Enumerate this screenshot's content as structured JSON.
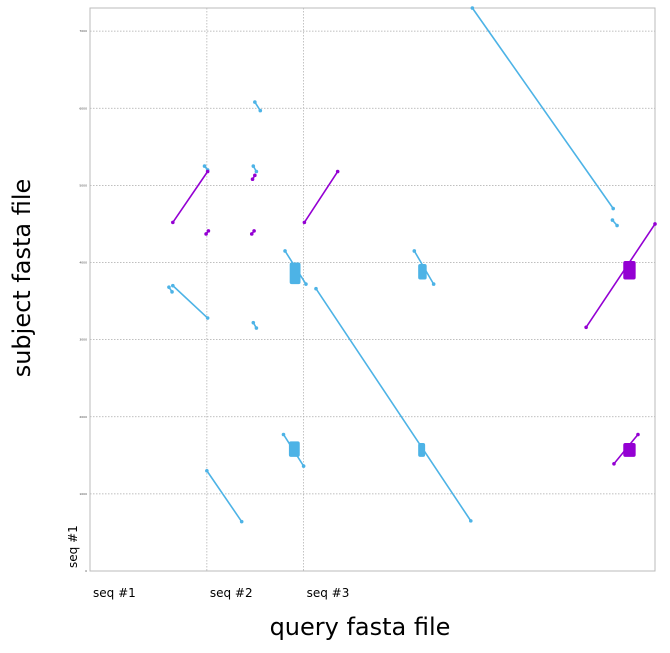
{
  "chart_data": {
    "type": "scatter",
    "subtype": "dotplot",
    "xlabel": "query fasta file",
    "ylabel": "subject fasta file",
    "query_sequences": [
      "seq #1",
      "seq #2",
      "seq #3"
    ],
    "subject_sequences": [
      "seq #1"
    ],
    "ytick_labels": [
      "0",
      "1000",
      "2000",
      "3000",
      "4000",
      "5000",
      "6000",
      "7000"
    ],
    "colors": {
      "forward": "#4db3e6",
      "reverse": "#9400d3",
      "gridline": "#aaaaaa",
      "frame": "#bbbbbb"
    },
    "xlim": [
      0,
      7300
    ],
    "ylim": [
      0,
      7300
    ],
    "grid": true,
    "alignments": [
      {
        "strand": "forward",
        "x": [
          1070,
          1520
        ],
        "y": [
          3700,
          3280
        ]
      },
      {
        "strand": "forward",
        "x": [
          1020,
          1060
        ],
        "y": [
          3680,
          3620
        ]
      },
      {
        "strand": "forward",
        "x": [
          1510,
          1960
        ],
        "y": [
          1300,
          640
        ]
      },
      {
        "strand": "forward",
        "x": [
          1480,
          1520
        ],
        "y": [
          5250,
          5200
        ]
      },
      {
        "strand": "forward",
        "x": [
          2130,
          2200
        ],
        "y": [
          6080,
          5970
        ]
      },
      {
        "strand": "forward",
        "x": [
          2110,
          2150
        ],
        "y": [
          5250,
          5180
        ]
      },
      {
        "strand": "forward",
        "x": [
          2110,
          2150
        ],
        "y": [
          3220,
          3150
        ]
      },
      {
        "strand": "forward",
        "x": [
          2520,
          2790
        ],
        "y": [
          4150,
          3720
        ]
      },
      {
        "strand": "forward",
        "x": [
          2500,
          2760
        ],
        "y": [
          1770,
          1360
        ]
      },
      {
        "strand": "forward",
        "x": [
          2920,
          4920
        ],
        "y": [
          3660,
          650
        ]
      },
      {
        "strand": "forward",
        "x": [
          4190,
          4440
        ],
        "y": [
          4150,
          3720
        ]
      },
      {
        "strand": "forward",
        "x": [
          4940,
          6760
        ],
        "y": [
          7300,
          4700
        ]
      },
      {
        "strand": "forward",
        "x": [
          6750,
          6810
        ],
        "y": [
          4550,
          4480
        ]
      },
      {
        "strand": "reverse",
        "x": [
          1070,
          1520
        ],
        "y": [
          4520,
          5180
        ]
      },
      {
        "strand": "reverse",
        "x": [
          1500,
          1530
        ],
        "y": [
          4370,
          4410
        ]
      },
      {
        "strand": "reverse",
        "x": [
          2100,
          2130
        ],
        "y": [
          5080,
          5130
        ]
      },
      {
        "strand": "reverse",
        "x": [
          2090,
          2120
        ],
        "y": [
          4370,
          4410
        ]
      },
      {
        "strand": "reverse",
        "x": [
          2770,
          3200
        ],
        "y": [
          4520,
          5180
        ]
      },
      {
        "strand": "reverse",
        "x": [
          6410,
          7300
        ],
        "y": [
          3160,
          4500
        ]
      },
      {
        "strand": "reverse",
        "x": [
          6770,
          7080
        ],
        "y": [
          1390,
          1770
        ]
      }
    ],
    "blocks": [
      {
        "strand": "forward",
        "x": [
          2580,
          2720
        ],
        "y": [
          3720,
          4000
        ]
      },
      {
        "strand": "forward",
        "x": [
          2570,
          2710
        ],
        "y": [
          1480,
          1680
        ]
      },
      {
        "strand": "forward",
        "x": [
          4240,
          4350
        ],
        "y": [
          3780,
          3980
        ]
      },
      {
        "strand": "forward",
        "x": [
          4240,
          4330
        ],
        "y": [
          1480,
          1660
        ]
      },
      {
        "strand": "reverse",
        "x": [
          6890,
          7050
        ],
        "y": [
          3780,
          4020
        ]
      },
      {
        "strand": "reverse",
        "x": [
          6890,
          7050
        ],
        "y": [
          1480,
          1660
        ]
      }
    ]
  }
}
